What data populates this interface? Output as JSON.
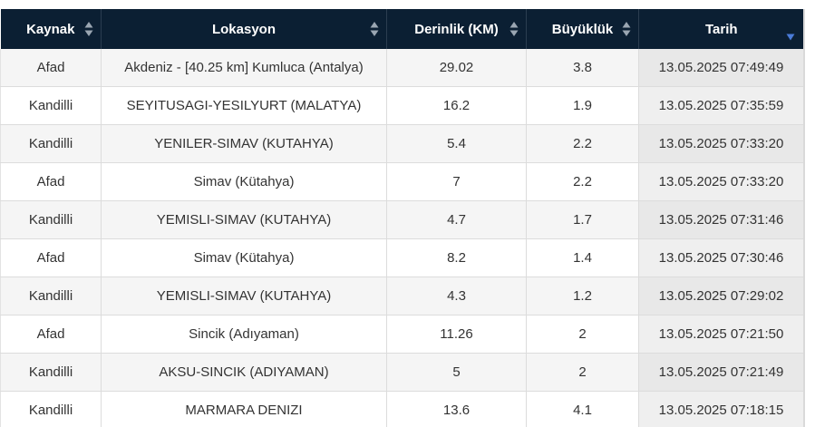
{
  "table": {
    "headers": [
      {
        "label": "Kaynak",
        "sort": "both"
      },
      {
        "label": "Lokasyon",
        "sort": "both"
      },
      {
        "label": "Derinlik (KM)",
        "sort": "both"
      },
      {
        "label": "Büyüklük",
        "sort": "both"
      },
      {
        "label": "Tarih",
        "sort": "desc"
      }
    ],
    "rows": [
      {
        "kaynak": "Afad",
        "lokasyon": "Akdeniz - [40.25 km] Kumluca (Antalya)",
        "derinlik": "29.02",
        "buyukluk": "3.8",
        "tarih": "13.05.2025 07:49:49"
      },
      {
        "kaynak": "Kandilli",
        "lokasyon": "SEYITUSAGI-YESILYURT (MALATYA)",
        "derinlik": "16.2",
        "buyukluk": "1.9",
        "tarih": "13.05.2025 07:35:59"
      },
      {
        "kaynak": "Kandilli",
        "lokasyon": "YENILER-SIMAV (KUTAHYA)",
        "derinlik": "5.4",
        "buyukluk": "2.2",
        "tarih": "13.05.2025 07:33:20"
      },
      {
        "kaynak": "Afad",
        "lokasyon": "Simav (Kütahya)",
        "derinlik": "7",
        "buyukluk": "2.2",
        "tarih": "13.05.2025 07:33:20"
      },
      {
        "kaynak": "Kandilli",
        "lokasyon": "YEMISLI-SIMAV (KUTAHYA)",
        "derinlik": "4.7",
        "buyukluk": "1.7",
        "tarih": "13.05.2025 07:31:46"
      },
      {
        "kaynak": "Afad",
        "lokasyon": "Simav (Kütahya)",
        "derinlik": "8.2",
        "buyukluk": "1.4",
        "tarih": "13.05.2025 07:30:46"
      },
      {
        "kaynak": "Kandilli",
        "lokasyon": "YEMISLI-SIMAV (KUTAHYA)",
        "derinlik": "4.3",
        "buyukluk": "1.2",
        "tarih": "13.05.2025 07:29:02"
      },
      {
        "kaynak": "Afad",
        "lokasyon": "Sincik (Adıyaman)",
        "derinlik": "11.26",
        "buyukluk": "2",
        "tarih": "13.05.2025 07:21:50"
      },
      {
        "kaynak": "Kandilli",
        "lokasyon": "AKSU-SINCIK (ADIYAMAN)",
        "derinlik": "5",
        "buyukluk": "2",
        "tarih": "13.05.2025 07:21:49"
      },
      {
        "kaynak": "Kandilli",
        "lokasyon": "MARMARA DENIZI",
        "derinlik": "13.6",
        "buyukluk": "4.1",
        "tarih": "13.05.2025 07:18:15"
      }
    ]
  },
  "colors": {
    "header_bg": "#0b1f33",
    "sort_icon": "#9aa6b2",
    "sort_active": "#4a7bd8"
  }
}
